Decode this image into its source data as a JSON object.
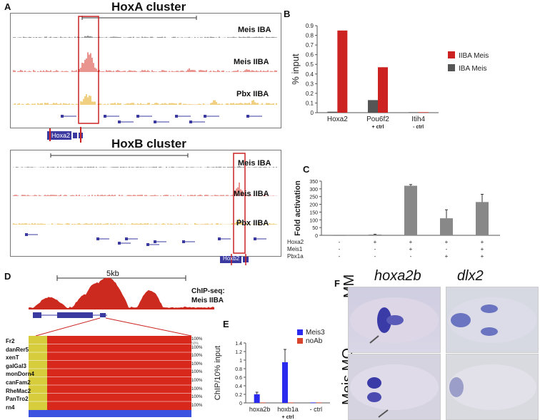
{
  "panel_a": {
    "letter": "A",
    "hoxa_title": "HoxA cluster",
    "hoxb_title": "HoxB cluster",
    "tracks": [
      "Meis IBA",
      "Meis IIBA",
      "Pbx IIBA"
    ],
    "hoxa_gene": "Hoxa2",
    "hoxb_gene": "Hoxb2",
    "colors": {
      "meis_iba": "#222222",
      "meis_iiba": "#d42a1f",
      "pbx_iiba": "#e0a000",
      "gene": "#3a3aa0",
      "highlight": "#cc2222"
    }
  },
  "panel_b": {
    "letter": "B"
  },
  "panel_c": {
    "letter": "C"
  },
  "panel_d": {
    "letter": "D",
    "scale": "5kb",
    "chip_label_1": "ChIP-seq:",
    "chip_label_2": "Meis IIBA",
    "species": [
      "Fr2",
      "danRer5",
      "xenT",
      "galGal3",
      "monDorn4",
      "canFam2",
      "RheMac2",
      "PanTro2",
      "rn4"
    ],
    "pct_top": "100%",
    "pct_bottom": "50%"
  },
  "panel_e": {
    "letter": "E"
  },
  "panel_f": {
    "letter": "F",
    "col1": "hoxa2b",
    "col2": "dlx2",
    "row1": "MM",
    "row2": "Meis MO"
  },
  "chart_data": [
    {
      "id": "B",
      "type": "bar",
      "categories": [
        "Hoxa2",
        "Pou6f2",
        "Itih4"
      ],
      "category_sublabels": [
        "",
        "+ ctrl",
        "- ctrl"
      ],
      "series": [
        {
          "name": "IBA Meis",
          "color": "#555555",
          "values": [
            0.01,
            0.13,
            0.005
          ]
        },
        {
          "name": "IIBA Meis",
          "color": "#cc2222",
          "values": [
            0.85,
            0.47,
            0.005
          ]
        }
      ],
      "ylabel": "% input",
      "ylim": [
        0,
        0.9
      ],
      "yticks": [
        0,
        0.1,
        0.2,
        0.3,
        0.4,
        0.5,
        0.6,
        0.7,
        0.8,
        0.9
      ],
      "legend": "right"
    },
    {
      "id": "C",
      "type": "bar",
      "categories": [
        "1",
        "2",
        "3",
        "4",
        "5"
      ],
      "series": [
        {
          "values": [
            0,
            5,
            320,
            110,
            215
          ],
          "errors": [
            0,
            2,
            8,
            55,
            50
          ],
          "color": "#888888"
        }
      ],
      "ylabel": "Fold activation",
      "ylim": [
        0,
        350
      ],
      "yticks": [
        0,
        50,
        100,
        150,
        200,
        250,
        300,
        350
      ],
      "rows": [
        {
          "label": "Hoxa2",
          "marks": [
            "-",
            "+",
            "+",
            "+",
            "+"
          ]
        },
        {
          "label": "Meis1",
          "marks": [
            "-",
            "-",
            "+",
            "-",
            "+"
          ]
        },
        {
          "label": "Pbx1a",
          "marks": [
            "-",
            "-",
            "-",
            "+",
            "+"
          ]
        }
      ]
    },
    {
      "id": "E",
      "type": "bar",
      "categories": [
        "hoxa2b",
        "hoxb1a",
        "- ctrl"
      ],
      "category_sublabels": [
        "",
        "+ ctrl",
        ""
      ],
      "series": [
        {
          "name": "Meis3",
          "color": "#2a2aee",
          "values": [
            0.2,
            0.95,
            0.01
          ],
          "errors": [
            0.05,
            0.3,
            0
          ]
        },
        {
          "name": "noAb",
          "color": "#d9452c",
          "values": [
            0.01,
            0.01,
            0.01
          ],
          "errors": [
            0,
            0,
            0
          ]
        }
      ],
      "ylabel": "ChIP/10% input",
      "ylim": [
        0,
        1.4
      ],
      "yticks": [
        0,
        0.2,
        0.4,
        0.6,
        0.8,
        1,
        1.2,
        1.4
      ],
      "legend": "top-right"
    }
  ]
}
